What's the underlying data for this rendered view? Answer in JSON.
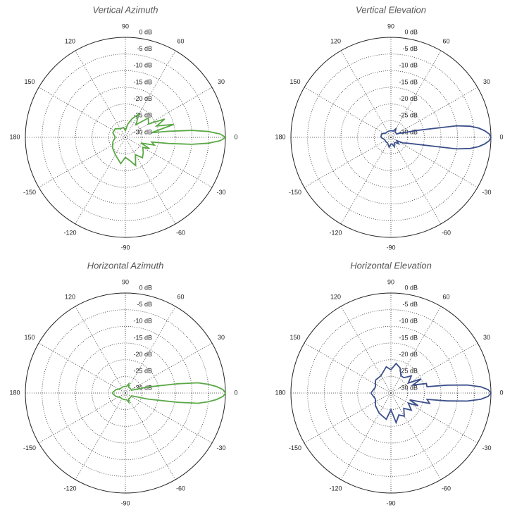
{
  "chart_data": [
    {
      "type": "polar",
      "title": "Vertical Azimuth",
      "color": "#5aa845",
      "xlim": [
        -180,
        180
      ],
      "xticks": [
        0,
        30,
        60,
        90,
        120,
        150,
        180,
        -150,
        -120,
        -90,
        -60,
        -30
      ],
      "ylim": [
        -30,
        0
      ],
      "yticks": [
        {
          "value": 0,
          "label": "0 dB"
        },
        {
          "value": -5,
          "label": "-5 dB"
        },
        {
          "value": -10,
          "label": "-10 dB"
        },
        {
          "value": -15,
          "label": "-15 dB"
        },
        {
          "value": -20,
          "label": "-20 dB"
        },
        {
          "value": -25,
          "label": "-25 dB"
        },
        {
          "value": -30,
          "label": "-30 dB"
        }
      ],
      "x": [
        -180,
        -160,
        -140,
        -120,
        -100,
        -90,
        -80,
        -70,
        -60,
        -50,
        -40,
        -30,
        -25,
        -20,
        -15,
        -10,
        -8,
        -6,
        -4,
        -2,
        0,
        2,
        4,
        6,
        8,
        10,
        15,
        20,
        25,
        30,
        40,
        50,
        60,
        70,
        80,
        90,
        100,
        120,
        140,
        160,
        180
      ],
      "values": [
        -27,
        -26,
        -25,
        -24,
        -22,
        -24,
        -23,
        -21,
        -24,
        -22,
        -23,
        -24,
        -22,
        -25,
        -21,
        -22,
        -17,
        -10,
        -5,
        -1.5,
        0,
        -1.5,
        -5,
        -10,
        -17,
        -22,
        -15,
        -20,
        -17,
        -22,
        -21,
        -25,
        -22,
        -24,
        -26,
        -28,
        -27,
        -27,
        -26,
        -26,
        -27
      ]
    },
    {
      "type": "polar",
      "title": "Vertical Elevation",
      "color": "#3b4f8a",
      "xlim": [
        -180,
        180
      ],
      "xticks": [
        0,
        30,
        60,
        90,
        120,
        150,
        180,
        -150,
        -120,
        -90,
        -60,
        -30
      ],
      "ylim": [
        -30,
        0
      ],
      "yticks": [
        {
          "value": 0,
          "label": "0 dB"
        },
        {
          "value": -5,
          "label": "-5 dB"
        },
        {
          "value": -10,
          "label": "-10 dB"
        },
        {
          "value": -15,
          "label": "-15 dB"
        },
        {
          "value": -20,
          "label": "-20 dB"
        },
        {
          "value": -25,
          "label": "-25 dB"
        },
        {
          "value": -30,
          "label": "-30 dB"
        }
      ],
      "x": [
        -180,
        -160,
        -140,
        -120,
        -100,
        -90,
        -80,
        -70,
        -60,
        -50,
        -40,
        -30,
        -25,
        -20,
        -15,
        -10,
        -8,
        -6,
        -4,
        -2,
        0,
        2,
        4,
        6,
        8,
        10,
        15,
        20,
        25,
        30,
        40,
        50,
        60,
        70,
        80,
        90,
        100,
        120,
        140,
        160,
        180
      ],
      "values": [
        -27,
        -28,
        -28,
        -28,
        -27,
        -28,
        -28,
        -27,
        -28,
        -28,
        -27,
        -28,
        -26,
        -25,
        -22,
        -10,
        -6,
        -3.5,
        -1.8,
        -0.5,
        0,
        -0.5,
        -1.8,
        -3.5,
        -6,
        -10,
        -22,
        -26,
        -27,
        -28,
        -28,
        -28,
        -27,
        -28,
        -28,
        -28,
        -28,
        -28,
        -28,
        -27,
        -27
      ]
    },
    {
      "type": "polar",
      "title": "Horizontal Azimuth",
      "color": "#5aa845",
      "xlim": [
        -180,
        180
      ],
      "xticks": [
        0,
        30,
        60,
        90,
        120,
        150,
        180,
        -150,
        -120,
        -90,
        -60,
        -30
      ],
      "ylim": [
        -30,
        0
      ],
      "yticks": [
        {
          "value": 0,
          "label": "0 dB"
        },
        {
          "value": -5,
          "label": "-5 dB"
        },
        {
          "value": -10,
          "label": "-10 dB"
        },
        {
          "value": -15,
          "label": "-15 dB"
        },
        {
          "value": -20,
          "label": "-20 dB"
        },
        {
          "value": -25,
          "label": "-25 dB"
        },
        {
          "value": -30,
          "label": "-30 dB"
        }
      ],
      "x": [
        -180,
        -160,
        -140,
        -120,
        -100,
        -90,
        -80,
        -70,
        -60,
        -50,
        -40,
        -30,
        -25,
        -20,
        -15,
        -10,
        -8,
        -6,
        -4,
        -2,
        0,
        2,
        4,
        6,
        8,
        10,
        15,
        20,
        25,
        30,
        40,
        50,
        60,
        70,
        80,
        90,
        100,
        120,
        140,
        160,
        180
      ],
      "values": [
        -26,
        -27,
        -28,
        -28,
        -28,
        -28,
        -28,
        -27,
        -28,
        -28,
        -28,
        -28,
        -28,
        -27,
        -23,
        -14,
        -8,
        -5,
        -2.5,
        -0.7,
        0,
        -0.7,
        -2.5,
        -5,
        -8,
        -14,
        -23,
        -27,
        -28,
        -28,
        -28,
        -28,
        -28,
        -27,
        -28,
        -28,
        -28,
        -28,
        -28,
        -27,
        -26
      ]
    },
    {
      "type": "polar",
      "title": "Horizontal Elevation",
      "color": "#3b4f8a",
      "xlim": [
        -180,
        180
      ],
      "xticks": [
        0,
        30,
        60,
        90,
        120,
        150,
        180,
        -150,
        -120,
        -90,
        -60,
        -30
      ],
      "ylim": [
        -30,
        0
      ],
      "yticks": [
        {
          "value": 0,
          "label": "0 dB"
        },
        {
          "value": -5,
          "label": "-5 dB"
        },
        {
          "value": -10,
          "label": "-10 dB"
        },
        {
          "value": -15,
          "label": "-15 dB"
        },
        {
          "value": -20,
          "label": "-20 dB"
        },
        {
          "value": -25,
          "label": "-25 dB"
        },
        {
          "value": -30,
          "label": "-30 dB"
        }
      ],
      "x": [
        -180,
        -160,
        -140,
        -120,
        -100,
        -90,
        -80,
        -70,
        -60,
        -50,
        -40,
        -30,
        -25,
        -20,
        -15,
        -10,
        -8,
        -6,
        -4,
        -2,
        0,
        2,
        4,
        6,
        8,
        10,
        15,
        20,
        25,
        30,
        40,
        50,
        60,
        70,
        80,
        90,
        100,
        120,
        140,
        160,
        180
      ],
      "values": [
        -24,
        -25,
        -24,
        -23,
        -22,
        -25,
        -21,
        -23,
        -22,
        -24,
        -22,
        -24,
        -21,
        -24,
        -18,
        -19,
        -13,
        -7,
        -3,
        -0.8,
        0,
        -0.8,
        -3,
        -7,
        -13,
        -19,
        -19,
        -23,
        -20,
        -24,
        -22,
        -24,
        -24,
        -22,
        -21,
        -23,
        -22,
        -24,
        -24,
        -25,
        -24
      ]
    }
  ]
}
